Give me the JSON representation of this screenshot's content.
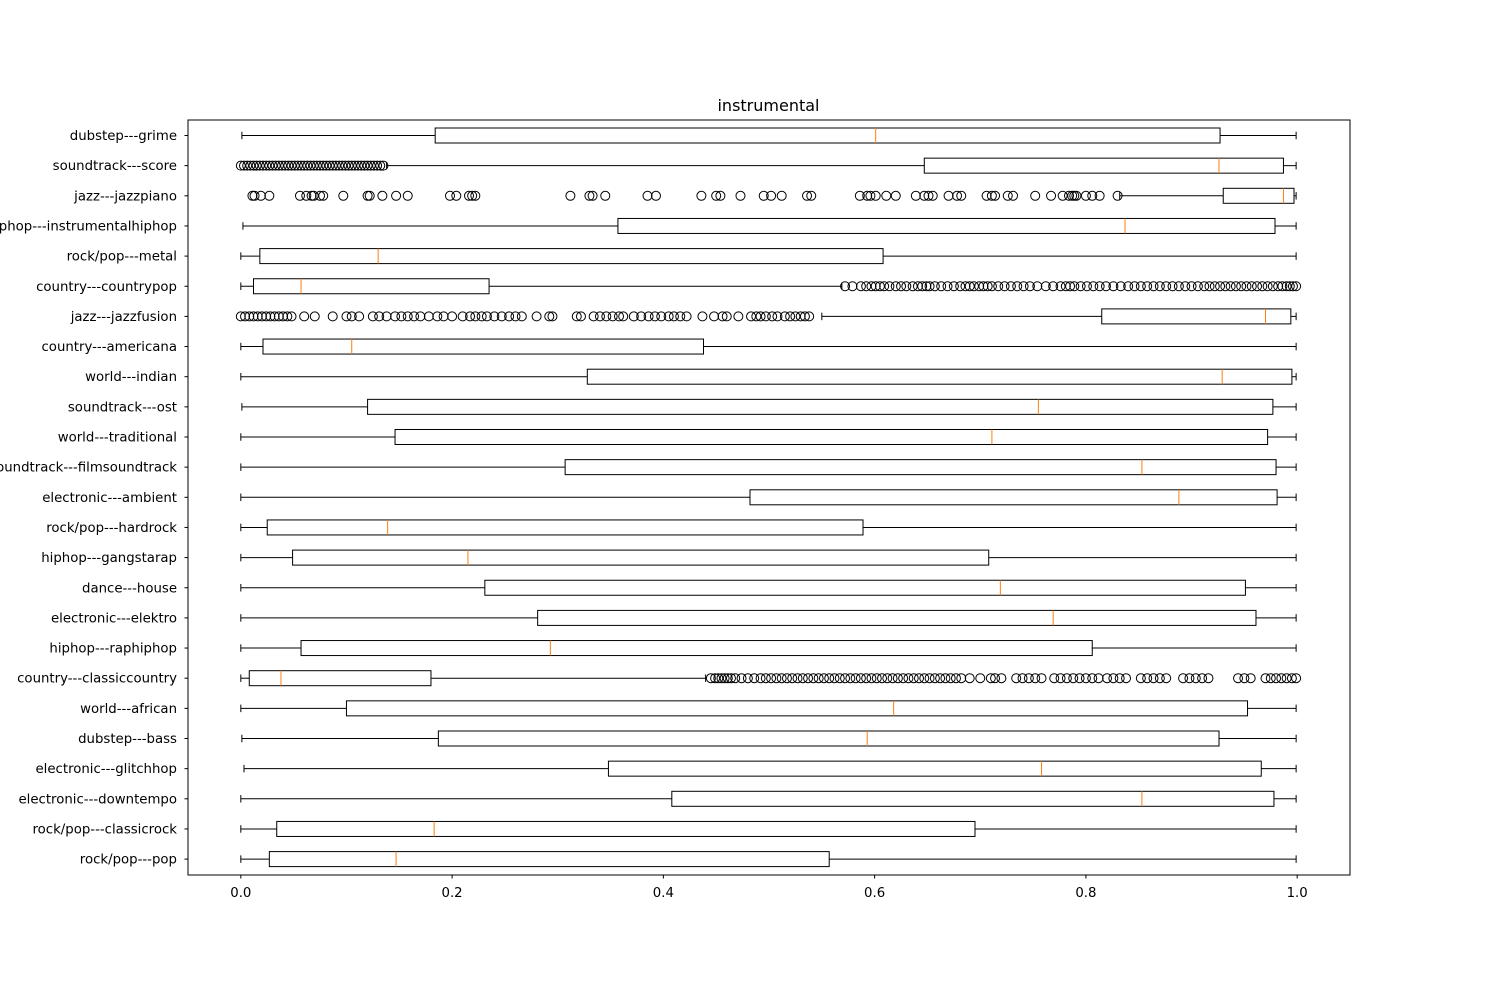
{
  "chart_data": {
    "type": "boxplot",
    "orientation": "horizontal",
    "title": "instrumental",
    "xlabel": "",
    "ylabel": "",
    "xlim": [
      -0.05,
      1.05
    ],
    "xticks": [
      0.0,
      0.2,
      0.4,
      0.6,
      0.8,
      1.0
    ],
    "xtick_labels": [
      "0.0",
      "0.2",
      "0.4",
      "0.6",
      "0.8",
      "1.0"
    ],
    "grid": false,
    "legend": "none",
    "colors": {
      "box": "#000000",
      "median": "#ff7f0e",
      "flier": "#000000"
    },
    "categories_top_to_bottom": [
      "dubstep---grime",
      "soundtrack---score",
      "jazz---jazzpiano",
      "hiphop---instrumentalhiphop",
      "rock/pop---metal",
      "country---countrypop",
      "jazz---jazzfusion",
      "country---americana",
      "world---indian",
      "soundtrack---ost",
      "world---traditional",
      "soundtrack---filmsoundtrack",
      "electronic---ambient",
      "rock/pop---hardrock",
      "hiphop---gangstarap",
      "dance---house",
      "electronic---elektro",
      "hiphop---raphiphop",
      "country---classiccountry",
      "world---african",
      "dubstep---bass",
      "electronic---glitchhop",
      "electronic---downtempo",
      "rock/pop---classicrock",
      "rock/pop---pop"
    ],
    "series": [
      {
        "name": "dubstep---grime",
        "whislo": 0.001,
        "q1": 0.184,
        "med": 0.601,
        "q3": 0.927,
        "whishi": 0.999,
        "fliers": []
      },
      {
        "name": "soundtrack---score",
        "whislo": 0.138,
        "q1": 0.647,
        "med": 0.926,
        "q3": 0.987,
        "whishi": 0.999,
        "fliers": [
          0.0,
          0.003,
          0.006,
          0.009,
          0.012,
          0.015,
          0.018,
          0.021,
          0.024,
          0.027,
          0.03,
          0.033,
          0.036,
          0.039,
          0.042,
          0.045,
          0.048,
          0.051,
          0.054,
          0.057,
          0.06,
          0.063,
          0.066,
          0.069,
          0.072,
          0.075,
          0.078,
          0.081,
          0.084,
          0.087,
          0.09,
          0.093,
          0.096,
          0.099,
          0.102,
          0.105,
          0.108,
          0.111,
          0.114,
          0.117,
          0.12,
          0.123,
          0.126,
          0.129,
          0.132,
          0.135
        ]
      },
      {
        "name": "jazz---jazzpiano",
        "whislo": 0.832,
        "q1": 0.93,
        "med": 0.987,
        "q3": 0.997,
        "whishi": 0.999,
        "fliers": [
          0.011,
          0.013,
          0.019,
          0.027,
          0.056,
          0.062,
          0.067,
          0.069,
          0.075,
          0.078,
          0.097,
          0.12,
          0.122,
          0.134,
          0.147,
          0.158,
          0.198,
          0.204,
          0.216,
          0.219,
          0.222,
          0.312,
          0.33,
          0.333,
          0.345,
          0.385,
          0.393,
          0.436,
          0.45,
          0.454,
          0.473,
          0.495,
          0.502,
          0.512,
          0.536,
          0.54,
          0.586,
          0.593,
          0.596,
          0.601,
          0.611,
          0.62,
          0.639,
          0.647,
          0.651,
          0.655,
          0.67,
          0.678,
          0.682,
          0.706,
          0.711,
          0.714,
          0.726,
          0.731,
          0.752,
          0.767,
          0.778,
          0.784,
          0.787,
          0.789,
          0.791,
          0.8,
          0.806,
          0.813,
          0.83
        ]
      },
      {
        "name": "hiphop---instrumentalhiphop",
        "whislo": 0.002,
        "q1": 0.357,
        "med": 0.837,
        "q3": 0.979,
        "whishi": 0.999,
        "fliers": []
      },
      {
        "name": "rock/pop---metal",
        "whislo": 0.0,
        "q1": 0.018,
        "med": 0.13,
        "q3": 0.608,
        "whishi": 0.999,
        "fliers": []
      },
      {
        "name": "country---countrypop",
        "whislo": 0.0,
        "q1": 0.012,
        "med": 0.057,
        "q3": 0.235,
        "whishi": 0.569,
        "fliers": [
          0.572,
          0.579,
          0.587,
          0.592,
          0.597,
          0.601,
          0.605,
          0.609,
          0.614,
          0.62,
          0.625,
          0.63,
          0.636,
          0.641,
          0.645,
          0.649,
          0.652,
          0.657,
          0.663,
          0.669,
          0.675,
          0.681,
          0.686,
          0.69,
          0.694,
          0.699,
          0.703,
          0.707,
          0.711,
          0.717,
          0.723,
          0.729,
          0.735,
          0.741,
          0.747,
          0.754,
          0.762,
          0.769,
          0.776,
          0.781,
          0.785,
          0.789,
          0.795,
          0.801,
          0.807,
          0.813,
          0.819,
          0.826,
          0.833,
          0.84,
          0.846,
          0.852,
          0.858,
          0.864,
          0.87,
          0.876,
          0.882,
          0.888,
          0.894,
          0.9,
          0.906,
          0.912,
          0.917,
          0.922,
          0.927,
          0.932,
          0.937,
          0.942,
          0.947,
          0.952,
          0.957,
          0.962,
          0.967,
          0.972,
          0.977,
          0.982,
          0.986,
          0.99,
          0.993,
          0.996,
          0.999
        ]
      },
      {
        "name": "jazz---jazzfusion",
        "whislo": 0.55,
        "q1": 0.815,
        "med": 0.97,
        "q3": 0.994,
        "whishi": 0.999,
        "fliers": [
          0.0,
          0.004,
          0.008,
          0.012,
          0.016,
          0.02,
          0.024,
          0.028,
          0.032,
          0.036,
          0.04,
          0.044,
          0.048,
          0.06,
          0.07,
          0.087,
          0.1,
          0.105,
          0.112,
          0.125,
          0.131,
          0.138,
          0.146,
          0.152,
          0.158,
          0.164,
          0.17,
          0.178,
          0.186,
          0.192,
          0.2,
          0.21,
          0.217,
          0.222,
          0.228,
          0.233,
          0.24,
          0.247,
          0.254,
          0.26,
          0.266,
          0.28,
          0.292,
          0.295,
          0.318,
          0.322,
          0.334,
          0.34,
          0.346,
          0.352,
          0.358,
          0.362,
          0.372,
          0.379,
          0.386,
          0.392,
          0.398,
          0.405,
          0.41,
          0.416,
          0.422,
          0.437,
          0.448,
          0.456,
          0.46,
          0.471,
          0.483,
          0.488,
          0.492,
          0.497,
          0.503,
          0.508,
          0.515,
          0.52,
          0.525,
          0.53,
          0.534,
          0.538
        ]
      },
      {
        "name": "country---americana",
        "whislo": 0.0,
        "q1": 0.021,
        "med": 0.105,
        "q3": 0.438,
        "whishi": 0.999,
        "fliers": []
      },
      {
        "name": "world---indian",
        "whislo": 0.0,
        "q1": 0.328,
        "med": 0.929,
        "q3": 0.995,
        "whishi": 0.999,
        "fliers": []
      },
      {
        "name": "soundtrack---ost",
        "whislo": 0.001,
        "q1": 0.12,
        "med": 0.755,
        "q3": 0.977,
        "whishi": 0.999,
        "fliers": []
      },
      {
        "name": "world---traditional",
        "whislo": 0.0,
        "q1": 0.146,
        "med": 0.711,
        "q3": 0.972,
        "whishi": 0.999,
        "fliers": []
      },
      {
        "name": "soundtrack---filmsoundtrack",
        "whislo": 0.0,
        "q1": 0.307,
        "med": 0.853,
        "q3": 0.98,
        "whishi": 0.999,
        "fliers": []
      },
      {
        "name": "electronic---ambient",
        "whislo": 0.0,
        "q1": 0.482,
        "med": 0.888,
        "q3": 0.981,
        "whishi": 0.999,
        "fliers": []
      },
      {
        "name": "rock/pop---hardrock",
        "whislo": 0.0,
        "q1": 0.025,
        "med": 0.139,
        "q3": 0.589,
        "whishi": 0.999,
        "fliers": []
      },
      {
        "name": "hiphop---gangstarap",
        "whislo": 0.0,
        "q1": 0.049,
        "med": 0.215,
        "q3": 0.708,
        "whishi": 0.999,
        "fliers": []
      },
      {
        "name": "dance---house",
        "whislo": 0.0,
        "q1": 0.231,
        "med": 0.719,
        "q3": 0.951,
        "whishi": 0.999,
        "fliers": []
      },
      {
        "name": "electronic---elektro",
        "whislo": 0.0,
        "q1": 0.281,
        "med": 0.769,
        "q3": 0.961,
        "whishi": 0.999,
        "fliers": []
      },
      {
        "name": "hiphop---raphiphop",
        "whislo": 0.0,
        "q1": 0.057,
        "med": 0.293,
        "q3": 0.806,
        "whishi": 0.999,
        "fliers": []
      },
      {
        "name": "country---classiccountry",
        "whislo": 0.0,
        "q1": 0.008,
        "med": 0.038,
        "q3": 0.18,
        "whishi": 0.44,
        "fliers": [
          0.445,
          0.449,
          0.452,
          0.455,
          0.458,
          0.461,
          0.464,
          0.468,
          0.474,
          0.48,
          0.486,
          0.492,
          0.497,
          0.502,
          0.507,
          0.512,
          0.517,
          0.522,
          0.527,
          0.532,
          0.537,
          0.542,
          0.547,
          0.552,
          0.557,
          0.562,
          0.567,
          0.572,
          0.577,
          0.582,
          0.587,
          0.592,
          0.597,
          0.602,
          0.607,
          0.612,
          0.617,
          0.622,
          0.627,
          0.632,
          0.637,
          0.642,
          0.647,
          0.652,
          0.657,
          0.662,
          0.667,
          0.672,
          0.677,
          0.682,
          0.69,
          0.7,
          0.71,
          0.714,
          0.72,
          0.734,
          0.74,
          0.746,
          0.752,
          0.758,
          0.77,
          0.776,
          0.782,
          0.788,
          0.794,
          0.8,
          0.806,
          0.812,
          0.82,
          0.826,
          0.832,
          0.838,
          0.852,
          0.858,
          0.864,
          0.87,
          0.876,
          0.892,
          0.898,
          0.904,
          0.91,
          0.916,
          0.944,
          0.95,
          0.956,
          0.97,
          0.975,
          0.98,
          0.985,
          0.99,
          0.995,
          0.999
        ]
      },
      {
        "name": "world---african",
        "whislo": 0.0,
        "q1": 0.1,
        "med": 0.618,
        "q3": 0.953,
        "whishi": 0.999,
        "fliers": []
      },
      {
        "name": "dubstep---bass",
        "whislo": 0.001,
        "q1": 0.187,
        "med": 0.593,
        "q3": 0.926,
        "whishi": 0.999,
        "fliers": []
      },
      {
        "name": "electronic---glitchhop",
        "whislo": 0.003,
        "q1": 0.348,
        "med": 0.758,
        "q3": 0.966,
        "whishi": 0.999,
        "fliers": []
      },
      {
        "name": "electronic---downtempo",
        "whislo": 0.0,
        "q1": 0.408,
        "med": 0.853,
        "q3": 0.978,
        "whishi": 0.999,
        "fliers": []
      },
      {
        "name": "rock/pop---classicrock",
        "whislo": 0.0,
        "q1": 0.034,
        "med": 0.183,
        "q3": 0.695,
        "whishi": 0.999,
        "fliers": []
      },
      {
        "name": "rock/pop---pop",
        "whislo": 0.0,
        "q1": 0.027,
        "med": 0.147,
        "q3": 0.557,
        "whishi": 0.999,
        "fliers": []
      }
    ]
  }
}
